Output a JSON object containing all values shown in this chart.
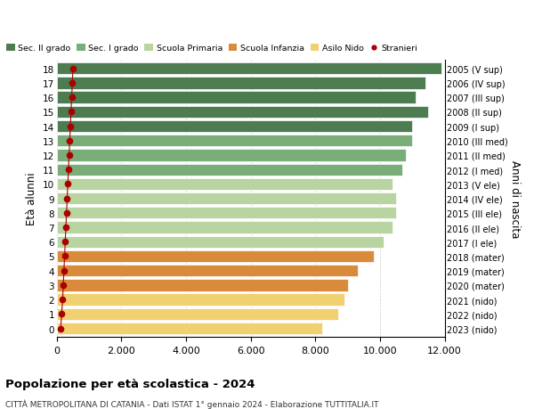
{
  "ages": [
    18,
    17,
    16,
    15,
    14,
    13,
    12,
    11,
    10,
    9,
    8,
    7,
    6,
    5,
    4,
    3,
    2,
    1,
    0
  ],
  "anni_nascita": [
    "2005 (V sup)",
    "2006 (IV sup)",
    "2007 (III sup)",
    "2008 (II sup)",
    "2009 (I sup)",
    "2010 (III med)",
    "2011 (II med)",
    "2012 (I med)",
    "2013 (V ele)",
    "2014 (IV ele)",
    "2015 (III ele)",
    "2016 (II ele)",
    "2017 (I ele)",
    "2018 (mater)",
    "2019 (mater)",
    "2020 (mater)",
    "2021 (nido)",
    "2022 (nido)",
    "2023 (nido)"
  ],
  "bar_values": [
    11900,
    11400,
    11100,
    11500,
    11000,
    11000,
    10800,
    10700,
    10400,
    10500,
    10500,
    10400,
    10100,
    9800,
    9300,
    9000,
    8900,
    8700,
    8200
  ],
  "bar_colors": [
    "#4d7c50",
    "#4d7c50",
    "#4d7c50",
    "#4d7c50",
    "#4d7c50",
    "#7aae78",
    "#7aae78",
    "#7aae78",
    "#b8d4a0",
    "#b8d4a0",
    "#b8d4a0",
    "#b8d4a0",
    "#b8d4a0",
    "#d98a3a",
    "#d98a3a",
    "#d98a3a",
    "#f0d070",
    "#f0d070",
    "#f0d070"
  ],
  "stranieri_values": [
    500,
    480,
    460,
    440,
    420,
    400,
    380,
    360,
    340,
    320,
    300,
    280,
    260,
    240,
    220,
    200,
    180,
    150,
    120
  ],
  "stranieri_color": "#aa0000",
  "legend_labels": [
    "Sec. II grado",
    "Sec. I grado",
    "Scuola Primaria",
    "Scuola Infanzia",
    "Asilo Nido",
    "Stranieri"
  ],
  "legend_colors": [
    "#4d7c50",
    "#7aae78",
    "#b8d4a0",
    "#d98a3a",
    "#f0d070",
    "#aa0000"
  ],
  "ylabel": "Età alunni",
  "right_label": "Anni di nascita",
  "title": "Popolazione per età scolastica - 2024",
  "subtitle": "CITTÀ METROPOLITANA DI CATANIA - Dati ISTAT 1° gennaio 2024 - Elaborazione TUTTITALIA.IT",
  "xlim": [
    0,
    12000
  ],
  "background_color": "#ffffff",
  "bar_height": 0.82
}
